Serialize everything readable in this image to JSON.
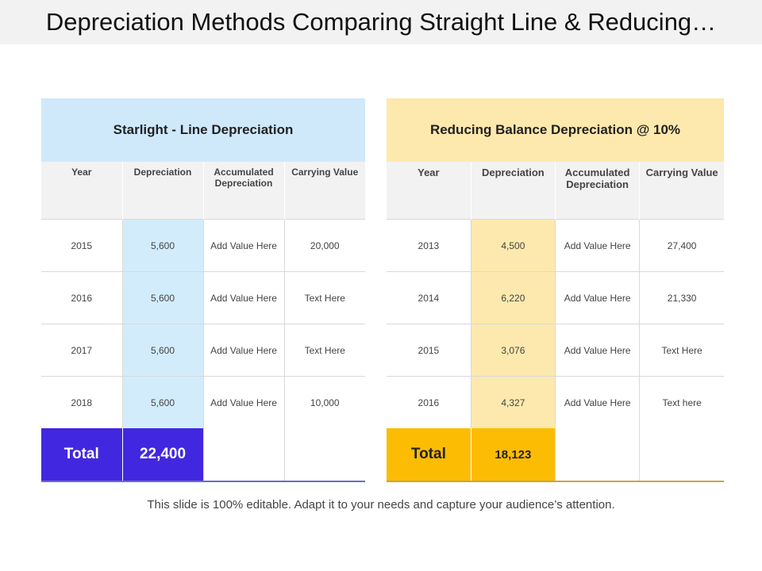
{
  "title": "Depreciation Methods Comparing Straight Line & Reducing…",
  "left": {
    "heading": "Starlight - Line Depreciation",
    "columns": [
      "Year",
      "Depreciation",
      "Accumulated Depreciation",
      "Carrying Value"
    ],
    "rows": [
      [
        "2015",
        "5,600",
        "Add Value Here",
        "20,000"
      ],
      [
        "2016",
        "5,600",
        "Add Value Here",
        "Text Here"
      ],
      [
        "2017",
        "5,600",
        "Add Value Here",
        "Text Here"
      ],
      [
        "2018",
        "5,600",
        "Add Value Here",
        "10,000"
      ]
    ],
    "total_label": "Total",
    "total_value": "22,400",
    "accent_color": "#4227e0",
    "header_color": "#cfe9fb"
  },
  "right": {
    "heading": "Reducing Balance Depreciation @ 10%",
    "columns": [
      "Year",
      "Depreciation",
      "Accumulated Depreciation",
      "Carrying Value"
    ],
    "rows": [
      [
        "2013",
        "4,500",
        "Add Value Here",
        "27,400"
      ],
      [
        "2014",
        "6,220",
        "Add Value Here",
        "21,330"
      ],
      [
        "2015",
        "3,076",
        "Add Value Here",
        "Text Here"
      ],
      [
        "2016",
        "4,327",
        "Add Value Here",
        "Text here"
      ]
    ],
    "total_label": "Total",
    "total_value": "18,123",
    "accent_color": "#fcbc04",
    "header_color": "#fde9ad"
  },
  "footer": "This slide is 100% editable. Adapt it to your needs and capture your audience’s attention."
}
